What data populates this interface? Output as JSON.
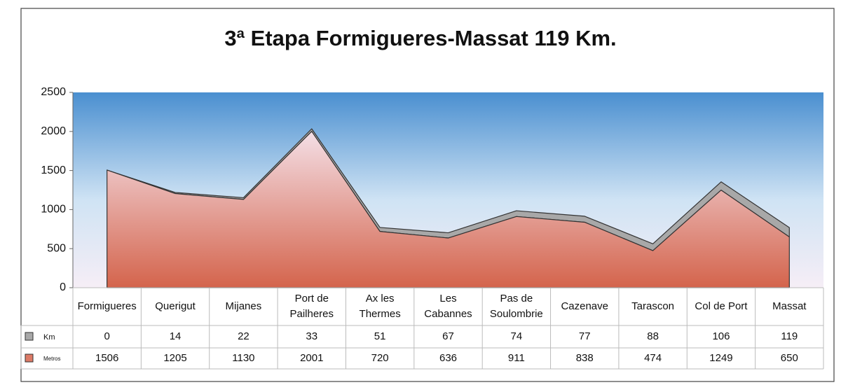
{
  "chart_data": {
    "type": "stacked-area",
    "title": "3ª Etapa Formigueres-Massat  119 Km.",
    "categories": [
      "Formigueres",
      "Querigut",
      "Mijanes",
      "Port de Pailheres",
      "Ax les Thermes",
      "Les Cabannes",
      "Pas de Soulombrie",
      "Cazenave",
      "Tarascon",
      "Col de Port",
      "Massat"
    ],
    "series": [
      {
        "name": "Km",
        "color": "#a8a8a8",
        "values": [
          0,
          14,
          22,
          33,
          51,
          67,
          74,
          77,
          88,
          106,
          119
        ]
      },
      {
        "name": "Metros",
        "color": "#dc7a66",
        "values": [
          1506,
          1205,
          1130,
          2001,
          720,
          636,
          911,
          838,
          474,
          1249,
          650
        ]
      }
    ],
    "stack_order": [
      "Metros",
      "Km"
    ],
    "ylim": [
      0,
      2500
    ],
    "yticks": [
      0,
      500,
      1000,
      1500,
      2000,
      2500
    ],
    "grid": false,
    "legend": "table"
  }
}
